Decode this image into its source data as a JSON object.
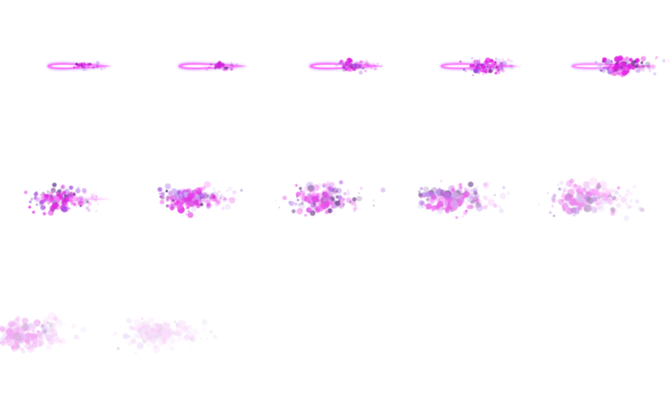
{
  "sprite_sheet": {
    "columns": 5,
    "rows": 3,
    "frame_count": 12,
    "colors": {
      "background": "#ffffff",
      "core_glow": "#c04dff",
      "core_hot": "#ff6bff",
      "core_center": "#fff0ff",
      "particle_magenta": "#e020e0",
      "particle_violet": "#9a40e0",
      "particle_dark": "#5a2a80",
      "particle_light": "#c9a0f0"
    },
    "frames": [
      {
        "index": 0,
        "beam": 1.0,
        "burst": 0.1,
        "fade": 0.0
      },
      {
        "index": 1,
        "beam": 1.0,
        "burst": 0.18,
        "fade": 0.0
      },
      {
        "index": 2,
        "beam": 1.0,
        "burst": 0.28,
        "fade": 0.0
      },
      {
        "index": 3,
        "beam": 0.95,
        "burst": 0.4,
        "fade": 0.0
      },
      {
        "index": 4,
        "beam": 0.85,
        "burst": 0.55,
        "fade": 0.0
      },
      {
        "index": 5,
        "beam": 0.45,
        "burst": 0.72,
        "fade": 0.05
      },
      {
        "index": 6,
        "beam": 0.3,
        "burst": 0.8,
        "fade": 0.1
      },
      {
        "index": 7,
        "beam": 0.15,
        "burst": 0.86,
        "fade": 0.2
      },
      {
        "index": 8,
        "beam": 0.0,
        "burst": 0.9,
        "fade": 0.3
      },
      {
        "index": 9,
        "beam": 0.0,
        "burst": 0.94,
        "fade": 0.45
      },
      {
        "index": 10,
        "beam": 0.0,
        "burst": 0.97,
        "fade": 0.62
      },
      {
        "index": 11,
        "beam": 0.0,
        "burst": 1.0,
        "fade": 0.8
      }
    ]
  }
}
